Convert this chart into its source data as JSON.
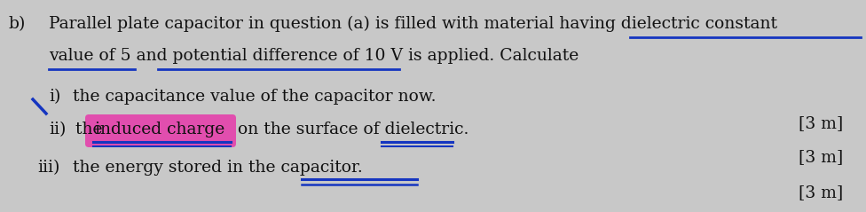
{
  "bg_color": "#c8c8c8",
  "label_b": "b)",
  "line1": "Parallel plate capacitor in question (a) is filled with material having dielectric constant",
  "line2": "value of 5 and potential difference of 10 V is applied. Calculate",
  "item_i_label": "i)",
  "item_i": "the capacitance value of the capacitor now.",
  "item_ii_label": "ii)",
  "item_ii_a": "the ",
  "item_ii_highlight": "induced charge",
  "item_ii_b": " on the surface of dielectric.",
  "item_iii_label": "iii)",
  "item_iii": "the energy stored in the capacitor.",
  "marks": "[3 m]",
  "underline_color": "#1535c0",
  "highlight_color": "#e830a8",
  "slash_color": "#1535c0",
  "text_color": "#111111",
  "font_size": 13.5
}
